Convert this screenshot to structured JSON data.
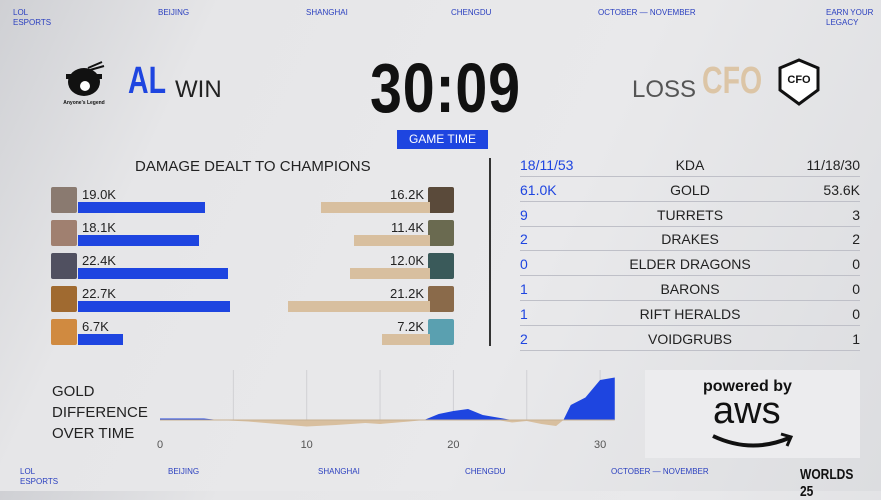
{
  "header": {
    "items": [
      "LOL\nESPORTS",
      "BEIJING",
      "SHANGHAI",
      "CHENGDU",
      "OCTOBER — NOVEMBER",
      "EARN YOUR\nLEGACY"
    ]
  },
  "footer": {
    "items": [
      "LOL\nESPORTS",
      "BEIJING",
      "SHANGHAI",
      "CHENGDU",
      "OCTOBER — NOVEMBER"
    ],
    "logo": "WORLDS 25"
  },
  "team_left": {
    "tag": "AL",
    "result": "WIN",
    "logo_text": "Anyone's Legend"
  },
  "team_right": {
    "tag": "CFO",
    "result": "LOSS",
    "logo_text": "CFO"
  },
  "game_time": {
    "value": "30:09",
    "label": "GAME TIME"
  },
  "colors": {
    "left": "#1e45e0",
    "right": "#d8bf9f"
  },
  "damage": {
    "title": "DAMAGE DEALT TO CHAMPIONS",
    "left": [
      {
        "label": "19.0K",
        "value": 19.0
      },
      {
        "label": "18.1K",
        "value": 18.1
      },
      {
        "label": "22.4K",
        "value": 22.4
      },
      {
        "label": "22.7K",
        "value": 22.7
      },
      {
        "label": "6.7K",
        "value": 6.7
      }
    ],
    "right": [
      {
        "label": "16.2K",
        "value": 16.2
      },
      {
        "label": "11.4K",
        "value": 11.4
      },
      {
        "label": "12.0K",
        "value": 12.0
      },
      {
        "label": "21.2K",
        "value": 21.2
      },
      {
        "label": "7.2K",
        "value": 7.2
      }
    ]
  },
  "stats": [
    {
      "left": "18/11/53",
      "name": "KDA",
      "right": "11/18/30"
    },
    {
      "left": "61.0K",
      "name": "GOLD",
      "right": "53.6K"
    },
    {
      "left": "9",
      "name": "TURRETS",
      "right": "3"
    },
    {
      "left": "2",
      "name": "DRAKES",
      "right": "2"
    },
    {
      "left": "0",
      "name": "ELDER DRAGONS",
      "right": "0"
    },
    {
      "left": "1",
      "name": "BARONS",
      "right": "0"
    },
    {
      "left": "1",
      "name": "RIFT HERALDS",
      "right": "0"
    },
    {
      "left": "2",
      "name": "VOIDGRUBS",
      "right": "1"
    }
  ],
  "chart_data": {
    "type": "area",
    "title": "GOLD\nDIFFERENCE\nOVER TIME",
    "xticks": [
      "0",
      "10",
      "20",
      "30"
    ],
    "xlim": [
      0,
      31
    ],
    "x": [
      0,
      3,
      4,
      6,
      8,
      10,
      12,
      14,
      15,
      17,
      18,
      19,
      20,
      21,
      22,
      23,
      24,
      25,
      26,
      27,
      27.5,
      28,
      29,
      30,
      31
    ],
    "y": [
      0.3,
      0.3,
      0,
      -0.3,
      -0.8,
      -1.3,
      -1.0,
      -0.6,
      -0.8,
      -0.3,
      0,
      1.2,
      1.8,
      2.2,
      1.0,
      0.5,
      -0.5,
      -0.2,
      -0.8,
      -1.2,
      0,
      3,
      4.5,
      8,
      8.5
    ]
  },
  "sponsor": {
    "line1": "powered by",
    "line2": "aws"
  }
}
